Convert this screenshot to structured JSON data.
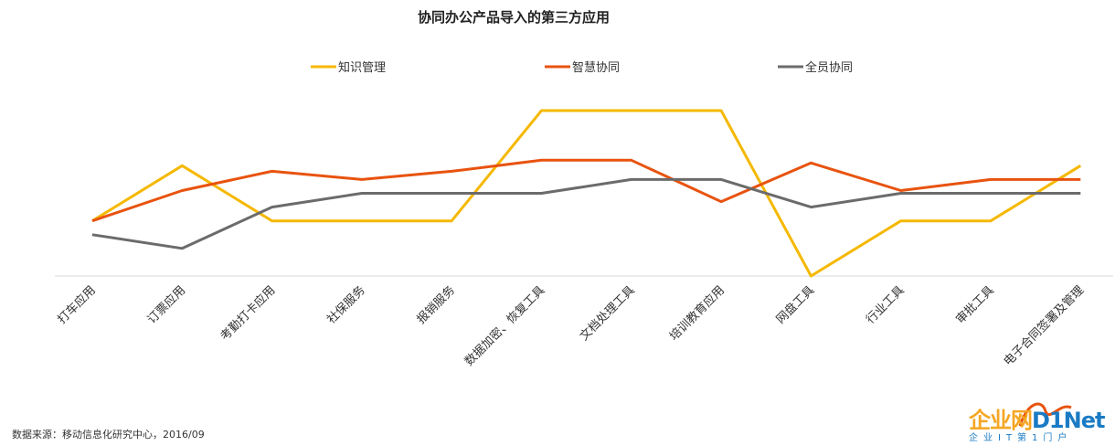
{
  "chart_data": {
    "type": "line",
    "title": "协同办公产品导入的第三方应用",
    "categories": [
      "打车应用",
      "订票应用",
      "考勤打卡应用",
      "社保服务",
      "报销服务",
      "数据加密、恢复工具",
      "文档处理工具",
      "培训教育应用",
      "网盘工具",
      "行业工具",
      "审批工具",
      "电子合同签署及管理"
    ],
    "series": [
      {
        "name": "知识管理",
        "color": "#f5b800",
        "values": [
          2.0,
          4.0,
          2.0,
          2.0,
          2.0,
          6.0,
          6.0,
          6.0,
          0.0,
          2.0,
          2.0,
          4.0
        ]
      },
      {
        "name": "智慧协同",
        "color": "#e8530f",
        "values": [
          2.0,
          3.1,
          3.8,
          3.5,
          3.8,
          4.2,
          4.2,
          2.7,
          4.1,
          3.1,
          3.5,
          3.5
        ]
      },
      {
        "name": "全员协同",
        "color": "#6b6b6b",
        "values": [
          1.5,
          1.0,
          2.5,
          3.0,
          3.0,
          3.0,
          3.5,
          3.5,
          2.5,
          3.0,
          3.0,
          3.0
        ]
      }
    ],
    "ylim": [
      0,
      6.0
    ],
    "xlabel": "",
    "ylabel": "",
    "grid": false,
    "legend_position": "top"
  },
  "footer": {
    "source": "数据来源：移动信息化研究中心，2016/09"
  },
  "logo": {
    "main_cn": "企业网",
    "main_en": "D1Net",
    "sub": "企业IT第1门户"
  }
}
